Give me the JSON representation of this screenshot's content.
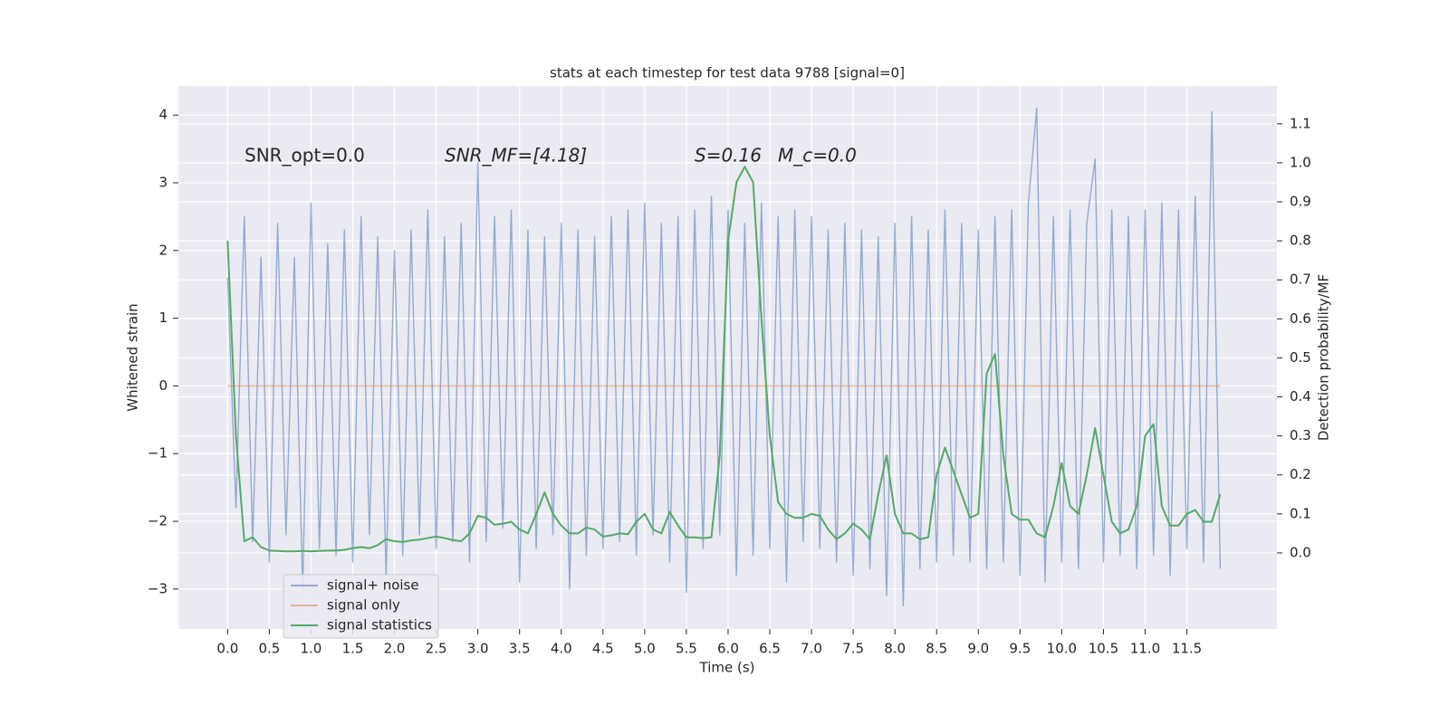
{
  "chart_data": {
    "type": "line",
    "title": "stats at each timestep for test data 9788 [signal=0]",
    "xlabel": "Time (s)",
    "ylabel": "Whitened strain",
    "y2label": "Detection probability/MF",
    "annotations": [
      "SNR_opt=0.0",
      "SNR_MF=[4.18]",
      "S=0.16",
      "M_c=0.0"
    ],
    "grid": true,
    "legend": "lower left",
    "xlim": [
      -0.59,
      12.58
    ],
    "ylim": [
      -3.59,
      4.43
    ],
    "y2lim": [
      -0.195,
      1.197
    ],
    "xticks": [
      {
        "value": 0,
        "label": "0.0"
      },
      {
        "value": 0.5,
        "label": "0.5"
      },
      {
        "value": 1,
        "label": "1.0"
      },
      {
        "value": 1.5,
        "label": "1.5"
      },
      {
        "value": 2,
        "label": "2.0"
      },
      {
        "value": 2.5,
        "label": "2.5"
      },
      {
        "value": 3,
        "label": "3.0"
      },
      {
        "value": 3.5,
        "label": "3.5"
      },
      {
        "value": 4,
        "label": "4.0"
      },
      {
        "value": 4.5,
        "label": "4.5"
      },
      {
        "value": 5,
        "label": "5.0"
      },
      {
        "value": 5.5,
        "label": "5.5"
      },
      {
        "value": 6,
        "label": "6.0"
      },
      {
        "value": 6.5,
        "label": "6.5"
      },
      {
        "value": 7,
        "label": "7.0"
      },
      {
        "value": 7.5,
        "label": "7.5"
      },
      {
        "value": 8,
        "label": "8.0"
      },
      {
        "value": 8.5,
        "label": "8.5"
      },
      {
        "value": 9,
        "label": "9.0"
      },
      {
        "value": 9.5,
        "label": "9.5"
      },
      {
        "value": 10,
        "label": "10.0"
      },
      {
        "value": 10.5,
        "label": "10.5"
      },
      {
        "value": 11,
        "label": "11.0"
      },
      {
        "value": 11.5,
        "label": "11.5"
      }
    ],
    "yticks": [
      {
        "value": -3,
        "label": "−3"
      },
      {
        "value": -2,
        "label": "−2"
      },
      {
        "value": -1,
        "label": "−1"
      },
      0,
      1,
      2,
      3,
      4
    ],
    "y2ticks": [
      {
        "value": 0,
        "label": "0.0"
      },
      {
        "value": 0.1,
        "label": "0.1"
      },
      {
        "value": 0.2,
        "label": "0.2"
      },
      {
        "value": 0.3,
        "label": "0.3"
      },
      {
        "value": 0.4,
        "label": "0.4"
      },
      {
        "value": 0.5,
        "label": "0.5"
      },
      {
        "value": 0.6,
        "label": "0.6"
      },
      {
        "value": 0.7,
        "label": "0.7"
      },
      {
        "value": 0.8,
        "label": "0.8"
      },
      {
        "value": 0.9,
        "label": "0.9"
      },
      {
        "value": 1.0,
        "label": "1.0"
      },
      {
        "value": 1.1,
        "label": "1.1"
      }
    ],
    "x": [
      0,
      0.1,
      0.2,
      0.3,
      0.4,
      0.5,
      0.6,
      0.7,
      0.8,
      0.9,
      1,
      1.1,
      1.2,
      1.3,
      1.4,
      1.5,
      1.6,
      1.7,
      1.8,
      1.9,
      2,
      2.1,
      2.2,
      2.3,
      2.4,
      2.5,
      2.6,
      2.7,
      2.8,
      2.9,
      3,
      3.1,
      3.2,
      3.3,
      3.4,
      3.5,
      3.6,
      3.7,
      3.8,
      3.9,
      4,
      4.1,
      4.2,
      4.3,
      4.4,
      4.5,
      4.6,
      4.7,
      4.8,
      4.9,
      5,
      5.1,
      5.2,
      5.3,
      5.4,
      5.5,
      5.6,
      5.7,
      5.8,
      5.9,
      6,
      6.1,
      6.2,
      6.3,
      6.4,
      6.5,
      6.6,
      6.7,
      6.8,
      6.9,
      7,
      7.1,
      7.2,
      7.3,
      7.4,
      7.5,
      7.6,
      7.7,
      7.8,
      7.9,
      8,
      8.1,
      8.2,
      8.3,
      8.4,
      8.5,
      8.6,
      8.7,
      8.8,
      8.9,
      9,
      9.1,
      9.2,
      9.3,
      9.4,
      9.5,
      9.6,
      9.7,
      9.8,
      9.9,
      10,
      10.1,
      10.2,
      10.3,
      10.4,
      10.5,
      10.6,
      10.7,
      10.8,
      10.9,
      11,
      11.1,
      11.2,
      11.3,
      11.4,
      11.5,
      11.6,
      11.7,
      11.8,
      11.9
    ],
    "series": [
      {
        "name": "signal+ noise",
        "color": "#4c72b0",
        "values": [
          1.6,
          -1.8,
          2.5,
          -2.3,
          1.9,
          -2.6,
          2.4,
          -2.2,
          1.9,
          -3.0,
          2.7,
          -2.4,
          2.1,
          -2.5,
          2.3,
          -2.6,
          2.5,
          -2.2,
          2.2,
          -2.8,
          2.0,
          -2.5,
          2.3,
          -2.2,
          2.6,
          -2.4,
          2.2,
          -2.3,
          2.4,
          -2.6,
          3.3,
          -2.3,
          2.5,
          -2.1,
          2.6,
          -2.9,
          2.3,
          -2.4,
          2.2,
          -2.2,
          2.4,
          -3.0,
          2.3,
          -2.5,
          2.2,
          -2.4,
          2.5,
          -2.3,
          2.6,
          -2.5,
          2.7,
          -2.2,
          2.4,
          -2.6,
          2.5,
          -3.05,
          2.6,
          -2.4,
          2.8,
          -2.2,
          2.6,
          -2.8,
          2.4,
          -2.5,
          2.7,
          -2.4,
          2.5,
          -2.9,
          2.6,
          -2.3,
          2.5,
          -2.4,
          2.3,
          -2.6,
          2.4,
          -2.8,
          2.3,
          -2.7,
          2.2,
          -3.1,
          2.4,
          -3.25,
          2.5,
          -2.7,
          2.3,
          -2.6,
          2.6,
          -2.5,
          2.4,
          -2.6,
          2.3,
          -2.7,
          2.5,
          -2.6,
          2.6,
          -2.8,
          2.7,
          4.1,
          -2.9,
          2.5,
          -2.6,
          2.6,
          -2.7,
          2.4,
          3.35,
          -2.6,
          2.6,
          -2.5,
          2.5,
          -2.7,
          2.6,
          -2.5,
          2.7,
          -2.8,
          2.6,
          -2.4,
          2.8,
          -2.6,
          4.05,
          -2.7
        ]
      },
      {
        "name": "signal only",
        "color": "#dd8452",
        "values": [
          0,
          0,
          0,
          0,
          0,
          0,
          0,
          0,
          0,
          0,
          0,
          0,
          0,
          0,
          0,
          0,
          0,
          0,
          0,
          0,
          0,
          0,
          0,
          0,
          0,
          0,
          0,
          0,
          0,
          0,
          0,
          0,
          0,
          0,
          0,
          0,
          0,
          0,
          0,
          0,
          0,
          0,
          0,
          0,
          0,
          0,
          0,
          0,
          0,
          0,
          0,
          0,
          0,
          0,
          0,
          0,
          0,
          0,
          0,
          0,
          0,
          0,
          0,
          0,
          0,
          0,
          0,
          0,
          0,
          0,
          0,
          0,
          0,
          0,
          0,
          0,
          0,
          0,
          0,
          0,
          0,
          0,
          0,
          0,
          0,
          0,
          0,
          0,
          0,
          0,
          0,
          0,
          0,
          0,
          0,
          0,
          0,
          0,
          0,
          0,
          0,
          0,
          0,
          0,
          0,
          0,
          0,
          0,
          0,
          0,
          0,
          0,
          0,
          0,
          0,
          0,
          0,
          0,
          0,
          0
        ]
      },
      {
        "name": "signal statistics",
        "color": "#55a868",
        "axis": "y2",
        "values": [
          0.8,
          0.3,
          0.03,
          0.04,
          0.015,
          0.006,
          0.005,
          0.004,
          0.004,
          0.005,
          0.004,
          0.005,
          0.006,
          0.006,
          0.008,
          0.012,
          0.015,
          0.012,
          0.02,
          0.035,
          0.03,
          0.028,
          0.032,
          0.034,
          0.038,
          0.042,
          0.038,
          0.033,
          0.03,
          0.05,
          0.095,
          0.09,
          0.072,
          0.075,
          0.08,
          0.06,
          0.05,
          0.1,
          0.155,
          0.1,
          0.07,
          0.05,
          0.05,
          0.065,
          0.06,
          0.042,
          0.045,
          0.05,
          0.048,
          0.08,
          0.1,
          0.06,
          0.05,
          0.105,
          0.07,
          0.04,
          0.04,
          0.038,
          0.04,
          0.25,
          0.8,
          0.95,
          0.99,
          0.95,
          0.6,
          0.3,
          0.13,
          0.1,
          0.09,
          0.09,
          0.1,
          0.095,
          0.06,
          0.035,
          0.05,
          0.075,
          0.06,
          0.035,
          0.15,
          0.25,
          0.1,
          0.05,
          0.05,
          0.035,
          0.04,
          0.2,
          0.27,
          0.21,
          0.15,
          0.09,
          0.1,
          0.46,
          0.51,
          0.25,
          0.1,
          0.085,
          0.085,
          0.05,
          0.04,
          0.12,
          0.23,
          0.12,
          0.1,
          0.2,
          0.32,
          0.2,
          0.08,
          0.05,
          0.06,
          0.12,
          0.3,
          0.33,
          0.12,
          0.07,
          0.07,
          0.1,
          0.11,
          0.08,
          0.08,
          0.15
        ]
      }
    ]
  }
}
